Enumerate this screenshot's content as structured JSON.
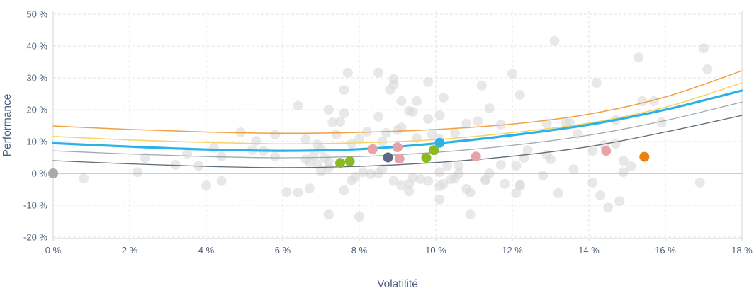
{
  "chart_data": {
    "type": "scatter",
    "title": "",
    "xlabel": "Volatilité",
    "ylabel": "Performance",
    "xlim": [
      0,
      18
    ],
    "ylim": [
      -20,
      50
    ],
    "x_ticks": [
      0,
      2,
      4,
      6,
      8,
      10,
      12,
      14,
      16,
      18
    ],
    "x_tick_labels": [
      "0 %",
      "2 %",
      "4 %",
      "6 %",
      "8 %",
      "10 %",
      "12 %",
      "14 %",
      "16 %",
      "18 %"
    ],
    "y_ticks": [
      50,
      40,
      30,
      20,
      10,
      0,
      -10,
      -20
    ],
    "y_tick_labels": [
      "50 %",
      "40 %",
      "30 %",
      "20 %",
      "10 %",
      "0 %",
      "-10 %",
      "-20 %"
    ],
    "grid": "dashed horizontal and vertical gridlines, solid zero line",
    "legend": "none",
    "colors": {
      "background_points": "#d9d9d9",
      "zero_line": "#9b9b9b",
      "frame": "#d6d6d6",
      "grid": "#e3e3e3",
      "text": "#4e5f7e"
    },
    "series": [
      {
        "name": "frontier-curve-orange",
        "type": "line",
        "color": "#efa143",
        "width": 1.5,
        "points": [
          [
            0,
            14.9
          ],
          [
            2,
            13.8
          ],
          [
            4,
            13.0
          ],
          [
            6,
            12.6
          ],
          [
            8,
            12.9
          ],
          [
            10,
            13.8
          ],
          [
            12,
            15.5
          ],
          [
            14,
            18.6
          ],
          [
            16,
            24.0
          ],
          [
            18,
            32.2
          ]
        ]
      },
      {
        "name": "frontier-curve-yellow",
        "type": "line",
        "color": "#f6d463",
        "width": 1.5,
        "points": [
          [
            0,
            11.6
          ],
          [
            2,
            10.5
          ],
          [
            4,
            9.7
          ],
          [
            6,
            9.3
          ],
          [
            8,
            9.6
          ],
          [
            10,
            10.6
          ],
          [
            12,
            12.8
          ],
          [
            14,
            15.8
          ],
          [
            16,
            20.8
          ],
          [
            18,
            28.4
          ]
        ]
      },
      {
        "name": "frontier-curve-blue",
        "type": "line",
        "color": "#29b2e8",
        "width": 3.2,
        "points": [
          [
            0,
            9.5
          ],
          [
            2,
            8.4
          ],
          [
            4,
            7.5
          ],
          [
            6,
            7.1
          ],
          [
            8,
            7.6
          ],
          [
            10,
            9.4
          ],
          [
            12,
            12.0
          ],
          [
            14,
            15.3
          ],
          [
            16,
            20.0
          ],
          [
            18,
            26.0
          ]
        ]
      },
      {
        "name": "frontier-curve-gray-light",
        "type": "line",
        "color": "#9fa9b1",
        "width": 1.3,
        "points": [
          [
            0,
            7.1
          ],
          [
            2,
            6.1
          ],
          [
            4,
            5.3
          ],
          [
            6,
            4.9
          ],
          [
            8,
            5.3
          ],
          [
            10,
            6.6
          ],
          [
            12,
            8.8
          ],
          [
            14,
            12.0
          ],
          [
            16,
            16.6
          ],
          [
            18,
            22.4
          ]
        ]
      },
      {
        "name": "frontier-curve-gray-dark",
        "type": "line",
        "color": "#5f6e7a",
        "width": 1.3,
        "points": [
          [
            0,
            4.0
          ],
          [
            2,
            3.0
          ],
          [
            4,
            2.2
          ],
          [
            6,
            1.8
          ],
          [
            8,
            2.2
          ],
          [
            10,
            3.4
          ],
          [
            12,
            5.4
          ],
          [
            14,
            8.4
          ],
          [
            16,
            13.0
          ],
          [
            18,
            18.2
          ]
        ]
      },
      {
        "name": "background-points",
        "type": "scatter",
        "color": "#d9d9d9",
        "opacity": 0.6,
        "radius": 7,
        "points": [
          [
            0.8,
            -1.6
          ],
          [
            2.2,
            0.4
          ],
          [
            2.4,
            4.9
          ],
          [
            3.2,
            2.7
          ],
          [
            3.5,
            6.2
          ],
          [
            3.8,
            2.4
          ],
          [
            4.0,
            -3.8
          ],
          [
            4.2,
            8.0
          ],
          [
            4.4,
            5.3
          ],
          [
            4.4,
            -2.4
          ],
          [
            4.9,
            12.9
          ],
          [
            5.2,
            7.3
          ],
          [
            5.3,
            10.2
          ],
          [
            5.5,
            7.1
          ],
          [
            5.8,
            12.2
          ],
          [
            5.8,
            5.3
          ],
          [
            6.1,
            -5.8
          ],
          [
            6.4,
            21.3
          ],
          [
            6.4,
            -6.0
          ],
          [
            6.6,
            10.7
          ],
          [
            6.6,
            4.4
          ],
          [
            6.7,
            3.6
          ],
          [
            6.7,
            -4.7
          ],
          [
            6.8,
            5.6
          ],
          [
            6.9,
            9.1
          ],
          [
            6.9,
            2.9
          ],
          [
            7.0,
            7.6
          ],
          [
            7.0,
            0.7
          ],
          [
            7.1,
            4.9
          ],
          [
            7.2,
            20.0
          ],
          [
            7.2,
            3.8
          ],
          [
            7.2,
            1.8
          ],
          [
            7.2,
            -12.9
          ],
          [
            7.3,
            16.0
          ],
          [
            7.4,
            12.2
          ],
          [
            7.5,
            16.2
          ],
          [
            7.6,
            26.2
          ],
          [
            7.6,
            18.9
          ],
          [
            7.6,
            -5.3
          ],
          [
            7.7,
            31.6
          ],
          [
            7.8,
            9.3
          ],
          [
            7.8,
            -2.2
          ],
          [
            7.9,
            -1.1
          ],
          [
            8.0,
            10.9
          ],
          [
            8.0,
            -13.6
          ],
          [
            8.1,
            0.4
          ],
          [
            8.2,
            13.1
          ],
          [
            8.3,
            -0.2
          ],
          [
            8.5,
            31.6
          ],
          [
            8.5,
            17.8
          ],
          [
            8.5,
            0.0
          ],
          [
            8.6,
            10.0
          ],
          [
            8.6,
            1.3
          ],
          [
            8.7,
            12.7
          ],
          [
            8.8,
            26.2
          ],
          [
            8.9,
            29.6
          ],
          [
            8.9,
            27.8
          ],
          [
            8.9,
            -2.4
          ],
          [
            9.0,
            13.6
          ],
          [
            9.1,
            22.7
          ],
          [
            9.1,
            14.4
          ],
          [
            9.1,
            -3.8
          ],
          [
            9.3,
            19.6
          ],
          [
            9.3,
            -3.3
          ],
          [
            9.3,
            -5.6
          ],
          [
            9.4,
            19.3
          ],
          [
            9.4,
            -1.3
          ],
          [
            9.5,
            22.7
          ],
          [
            9.5,
            11.1
          ],
          [
            9.6,
            -1.8
          ],
          [
            9.8,
            28.7
          ],
          [
            9.8,
            17.1
          ],
          [
            9.8,
            -2.4
          ],
          [
            9.9,
            12.2
          ],
          [
            10.1,
            18.2
          ],
          [
            10.1,
            10.9
          ],
          [
            10.1,
            0.4
          ],
          [
            10.1,
            -4.0
          ],
          [
            10.1,
            -8.2
          ],
          [
            10.2,
            23.8
          ],
          [
            10.2,
            -3.3
          ],
          [
            10.3,
            2.4
          ],
          [
            10.4,
            -1.8
          ],
          [
            10.5,
            12.7
          ],
          [
            10.5,
            -1.6
          ],
          [
            10.6,
            2.4
          ],
          [
            10.6,
            0.0
          ],
          [
            10.8,
            15.6
          ],
          [
            10.8,
            -4.9
          ],
          [
            10.9,
            -6.0
          ],
          [
            10.9,
            -12.9
          ],
          [
            11.1,
            16.4
          ],
          [
            11.2,
            27.6
          ],
          [
            11.3,
            -1.8
          ],
          [
            11.3,
            -2.2
          ],
          [
            11.4,
            20.4
          ],
          [
            11.4,
            0.0
          ],
          [
            11.7,
            15.3
          ],
          [
            11.7,
            2.7
          ],
          [
            11.8,
            -3.3
          ],
          [
            12.0,
            31.3
          ],
          [
            12.1,
            2.4
          ],
          [
            12.1,
            -6.2
          ],
          [
            12.2,
            24.7
          ],
          [
            12.2,
            -3.8
          ],
          [
            12.2,
            -3.6
          ],
          [
            12.3,
            4.9
          ],
          [
            12.4,
            7.3
          ],
          [
            12.8,
            -0.7
          ],
          [
            12.9,
            15.6
          ],
          [
            12.9,
            5.8
          ],
          [
            13.0,
            4.4
          ],
          [
            13.1,
            41.6
          ],
          [
            13.2,
            -6.2
          ],
          [
            13.4,
            15.8
          ],
          [
            13.5,
            16.0
          ],
          [
            13.6,
            1.3
          ],
          [
            13.7,
            12.4
          ],
          [
            14.1,
            7.1
          ],
          [
            14.1,
            -2.9
          ],
          [
            14.2,
            28.4
          ],
          [
            14.3,
            -6.9
          ],
          [
            14.4,
            8.9
          ],
          [
            14.5,
            -10.7
          ],
          [
            14.7,
            16.7
          ],
          [
            14.7,
            9.3
          ],
          [
            14.8,
            -8.7
          ],
          [
            14.9,
            4.0
          ],
          [
            14.9,
            0.4
          ],
          [
            15.1,
            2.2
          ],
          [
            15.3,
            36.4
          ],
          [
            15.4,
            22.7
          ],
          [
            15.7,
            22.7
          ],
          [
            15.9,
            16.0
          ],
          [
            16.9,
            -2.9
          ],
          [
            17.0,
            39.3
          ],
          [
            17.1,
            32.7
          ]
        ]
      },
      {
        "name": "highlight-points-green",
        "type": "scatter",
        "color": "#8ab921",
        "opacity": 1,
        "radius": 7,
        "points": [
          [
            7.5,
            3.3
          ],
          [
            7.75,
            3.8
          ],
          [
            9.75,
            4.9
          ],
          [
            9.95,
            7.3
          ]
        ]
      },
      {
        "name": "highlight-points-pink",
        "type": "scatter",
        "color": "#e8a3a8",
        "opacity": 1,
        "radius": 7,
        "points": [
          [
            8.35,
            7.6
          ],
          [
            9.0,
            8.2
          ],
          [
            9.05,
            4.6
          ],
          [
            11.05,
            5.3
          ],
          [
            14.45,
            7.1
          ]
        ]
      },
      {
        "name": "highlight-point-slate",
        "type": "scatter",
        "color": "#5c6784",
        "opacity": 1,
        "radius": 7,
        "points": [
          [
            8.75,
            5.0
          ]
        ]
      },
      {
        "name": "highlight-point-blue",
        "type": "scatter",
        "color": "#29b2e8",
        "opacity": 1,
        "radius": 7,
        "points": [
          [
            10.1,
            9.6
          ]
        ]
      },
      {
        "name": "highlight-point-orange",
        "type": "scatter",
        "color": "#e8830f",
        "opacity": 1,
        "radius": 7,
        "points": [
          [
            15.45,
            5.2
          ]
        ]
      },
      {
        "name": "origin-point",
        "type": "scatter",
        "color": "#a9a9a9",
        "opacity": 1,
        "radius": 7,
        "points": [
          [
            0,
            0
          ]
        ]
      }
    ]
  }
}
